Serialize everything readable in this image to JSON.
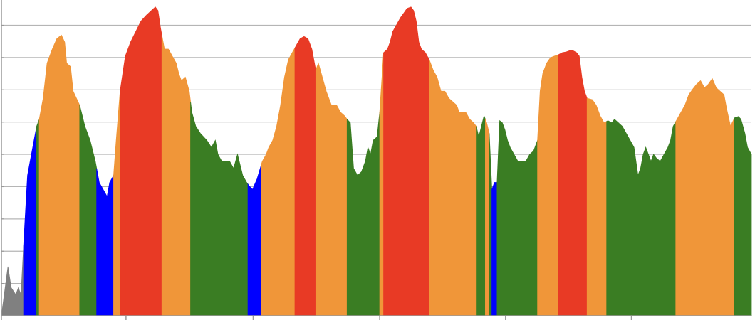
{
  "chart_data": {
    "type": "area",
    "title": "",
    "xlabel": "",
    "ylabel": "",
    "grid": true,
    "legend": "none",
    "x_range": [
      0,
      1150
    ],
    "ylim": [
      0,
      450
    ],
    "x_ticks": [
      0,
      191,
      386,
      580,
      773,
      966
    ],
    "y_ticks": [
      46,
      92,
      138,
      184,
      230,
      276,
      322,
      368,
      414
    ],
    "zone_colors": {
      "gray": "#808080",
      "blue": "#0000ff",
      "green": "#3a7d23",
      "orange": "#f09639",
      "red": "#e83a25"
    },
    "profile": [
      [
        0,
        0
      ],
      [
        10,
        70
      ],
      [
        15,
        40
      ],
      [
        22,
        30
      ],
      [
        26,
        40
      ],
      [
        30,
        30
      ],
      [
        34,
        100
      ],
      [
        40,
        200
      ],
      [
        48,
        240
      ],
      [
        54,
        270
      ],
      [
        58,
        280
      ],
      [
        64,
        310
      ],
      [
        70,
        360
      ],
      [
        78,
        380
      ],
      [
        85,
        395
      ],
      [
        92,
        400
      ],
      [
        97,
        390
      ],
      [
        100,
        360
      ],
      [
        106,
        355
      ],
      [
        110,
        320
      ],
      [
        120,
        300
      ],
      [
        128,
        270
      ],
      [
        136,
        250
      ],
      [
        144,
        220
      ],
      [
        150,
        190
      ],
      [
        156,
        180
      ],
      [
        162,
        170
      ],
      [
        166,
        190
      ],
      [
        172,
        200
      ],
      [
        176,
        250
      ],
      [
        182,
        320
      ],
      [
        190,
        370
      ],
      [
        198,
        390
      ],
      [
        206,
        405
      ],
      [
        214,
        420
      ],
      [
        222,
        428
      ],
      [
        230,
        435
      ],
      [
        236,
        440
      ],
      [
        240,
        435
      ],
      [
        244,
        410
      ],
      [
        250,
        380
      ],
      [
        256,
        380
      ],
      [
        262,
        370
      ],
      [
        268,
        360
      ],
      [
        272,
        345
      ],
      [
        276,
        335
      ],
      [
        282,
        340
      ],
      [
        288,
        320
      ],
      [
        292,
        290
      ],
      [
        298,
        270
      ],
      [
        305,
        260
      ],
      [
        315,
        250
      ],
      [
        322,
        240
      ],
      [
        328,
        250
      ],
      [
        332,
        230
      ],
      [
        338,
        220
      ],
      [
        344,
        220
      ],
      [
        350,
        220
      ],
      [
        356,
        210
      ],
      [
        362,
        230
      ],
      [
        370,
        200
      ],
      [
        376,
        190
      ],
      [
        380,
        185
      ],
      [
        385,
        180
      ],
      [
        392,
        195
      ],
      [
        400,
        220
      ],
      [
        406,
        230
      ],
      [
        410,
        240
      ],
      [
        416,
        250
      ],
      [
        422,
        270
      ],
      [
        428,
        300
      ],
      [
        434,
        340
      ],
      [
        440,
        365
      ],
      [
        446,
        375
      ],
      [
        452,
        385
      ],
      [
        458,
        395
      ],
      [
        464,
        398
      ],
      [
        470,
        395
      ],
      [
        476,
        380
      ],
      [
        482,
        350
      ],
      [
        486,
        360
      ],
      [
        492,
        340
      ],
      [
        498,
        320
      ],
      [
        502,
        310
      ],
      [
        506,
        300
      ],
      [
        514,
        300
      ],
      [
        520,
        290
      ],
      [
        526,
        285
      ],
      [
        530,
        280
      ],
      [
        535,
        275
      ],
      [
        540,
        210
      ],
      [
        546,
        200
      ],
      [
        552,
        205
      ],
      [
        558,
        220
      ],
      [
        562,
        240
      ],
      [
        566,
        230
      ],
      [
        570,
        250
      ],
      [
        576,
        255
      ],
      [
        580,
        290
      ],
      [
        586,
        375
      ],
      [
        592,
        380
      ],
      [
        596,
        390
      ],
      [
        600,
        405
      ],
      [
        606,
        415
      ],
      [
        612,
        425
      ],
      [
        616,
        430
      ],
      [
        622,
        438
      ],
      [
        628,
        440
      ],
      [
        632,
        435
      ],
      [
        636,
        420
      ],
      [
        640,
        390
      ],
      [
        644,
        380
      ],
      [
        650,
        375
      ],
      [
        656,
        365
      ],
      [
        662,
        350
      ],
      [
        668,
        340
      ],
      [
        674,
        320
      ],
      [
        680,
        320
      ],
      [
        686,
        310
      ],
      [
        692,
        305
      ],
      [
        698,
        300
      ],
      [
        702,
        290
      ],
      [
        706,
        290
      ],
      [
        712,
        290
      ],
      [
        718,
        280
      ],
      [
        724,
        275
      ],
      [
        728,
        270
      ],
      [
        732,
        255
      ],
      [
        736,
        270
      ],
      [
        740,
        285
      ],
      [
        744,
        275
      ],
      [
        748,
        260
      ],
      [
        752,
        180
      ],
      [
        756,
        190
      ],
      [
        760,
        190
      ],
      [
        764,
        278
      ],
      [
        768,
        275
      ],
      [
        772,
        265
      ],
      [
        776,
        250
      ],
      [
        780,
        240
      ],
      [
        786,
        230
      ],
      [
        792,
        220
      ],
      [
        798,
        220
      ],
      [
        804,
        220
      ],
      [
        810,
        230
      ],
      [
        816,
        235
      ],
      [
        822,
        250
      ],
      [
        826,
        320
      ],
      [
        830,
        345
      ],
      [
        836,
        360
      ],
      [
        842,
        368
      ],
      [
        848,
        370
      ],
      [
        854,
        372
      ],
      [
        860,
        375
      ],
      [
        866,
        376
      ],
      [
        872,
        378
      ],
      [
        876,
        378
      ],
      [
        882,
        375
      ],
      [
        886,
        370
      ],
      [
        890,
        340
      ],
      [
        894,
        320
      ],
      [
        898,
        310
      ],
      [
        906,
        308
      ],
      [
        912,
        300
      ],
      [
        918,
        285
      ],
      [
        924,
        275
      ],
      [
        930,
        278
      ],
      [
        936,
        275
      ],
      [
        940,
        280
      ],
      [
        946,
        275
      ],
      [
        952,
        270
      ],
      [
        958,
        260
      ],
      [
        964,
        250
      ],
      [
        970,
        240
      ],
      [
        976,
        200
      ],
      [
        980,
        210
      ],
      [
        984,
        230
      ],
      [
        988,
        240
      ],
      [
        992,
        230
      ],
      [
        996,
        220
      ],
      [
        1000,
        230
      ],
      [
        1004,
        225
      ],
      [
        1010,
        220
      ],
      [
        1016,
        230
      ],
      [
        1022,
        240
      ],
      [
        1026,
        250
      ],
      [
        1030,
        270
      ],
      [
        1036,
        280
      ],
      [
        1042,
        290
      ],
      [
        1048,
        300
      ],
      [
        1054,
        315
      ],
      [
        1060,
        323
      ],
      [
        1066,
        330
      ],
      [
        1072,
        335
      ],
      [
        1078,
        325
      ],
      [
        1084,
        330
      ],
      [
        1090,
        338
      ],
      [
        1096,
        325
      ],
      [
        1102,
        320
      ],
      [
        1108,
        315
      ],
      [
        1112,
        295
      ],
      [
        1118,
        270
      ],
      [
        1124,
        282
      ],
      [
        1130,
        284
      ],
      [
        1134,
        280
      ],
      [
        1140,
        260
      ],
      [
        1144,
        240
      ],
      [
        1150,
        230
      ]
    ],
    "zones": [
      {
        "from": 0,
        "to": 34,
        "zone": "gray"
      },
      {
        "from": 34,
        "to": 54,
        "zone": "blue"
      },
      {
        "from": 54,
        "to": 58,
        "zone": "green"
      },
      {
        "from": 58,
        "to": 120,
        "zone": "orange"
      },
      {
        "from": 120,
        "to": 146,
        "zone": "green"
      },
      {
        "from": 146,
        "to": 172,
        "zone": "blue"
      },
      {
        "from": 172,
        "to": 182,
        "zone": "orange"
      },
      {
        "from": 182,
        "to": 190,
        "zone": "red"
      },
      {
        "from": 190,
        "to": 246,
        "zone": "red"
      },
      {
        "from": 246,
        "to": 290,
        "zone": "orange"
      },
      {
        "from": 290,
        "to": 378,
        "zone": "green"
      },
      {
        "from": 378,
        "to": 398,
        "zone": "blue"
      },
      {
        "from": 398,
        "to": 450,
        "zone": "orange"
      },
      {
        "from": 450,
        "to": 482,
        "zone": "red"
      },
      {
        "from": 482,
        "to": 530,
        "zone": "orange"
      },
      {
        "from": 530,
        "to": 580,
        "zone": "green"
      },
      {
        "from": 580,
        "to": 586,
        "zone": "orange"
      },
      {
        "from": 586,
        "to": 656,
        "zone": "red"
      },
      {
        "from": 656,
        "to": 728,
        "zone": "orange"
      },
      {
        "from": 728,
        "to": 742,
        "zone": "green"
      },
      {
        "from": 742,
        "to": 748,
        "zone": "orange"
      },
      {
        "from": 748,
        "to": 752,
        "zone": "green"
      },
      {
        "from": 752,
        "to": 760,
        "zone": "blue"
      },
      {
        "from": 760,
        "to": 822,
        "zone": "green"
      },
      {
        "from": 822,
        "to": 854,
        "zone": "orange"
      },
      {
        "from": 854,
        "to": 898,
        "zone": "red"
      },
      {
        "from": 898,
        "to": 928,
        "zone": "orange"
      },
      {
        "from": 928,
        "to": 1034,
        "zone": "green"
      },
      {
        "from": 1034,
        "to": 1124,
        "zone": "orange"
      },
      {
        "from": 1124,
        "to": 1150,
        "zone": "green"
      }
    ]
  }
}
